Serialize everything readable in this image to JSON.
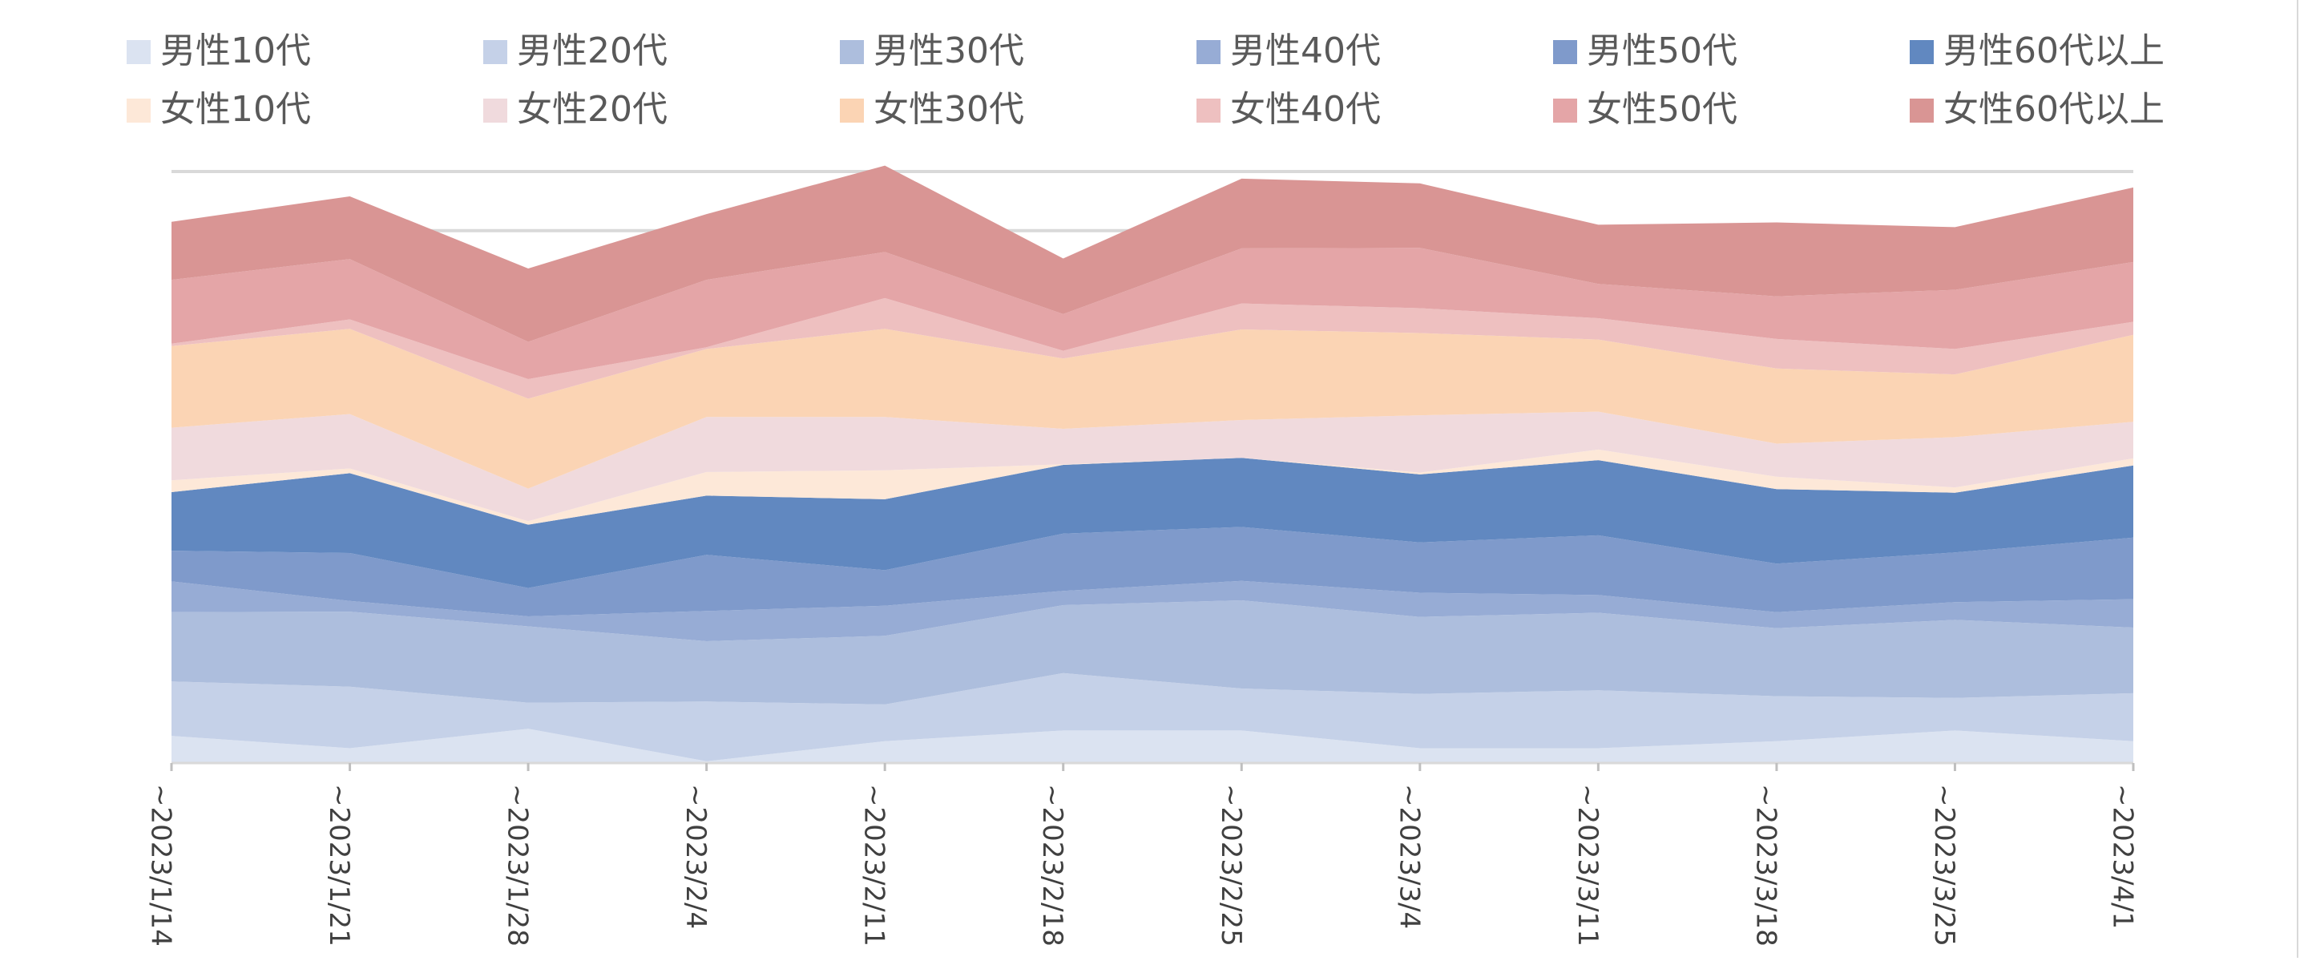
{
  "chart_data": {
    "type": "area",
    "stacked": true,
    "title": "",
    "xlabel": "",
    "ylabel": "",
    "ylim": [
      0,
      100
    ],
    "grid": true,
    "gridlines_y": [
      90,
      100
    ],
    "legend_position": "top",
    "categories": [
      "~2023/1/14",
      "~2023/1/21",
      "~2023/1/28",
      "~2023/2/4",
      "~2023/2/11",
      "~2023/2/18",
      "~2023/2/25",
      "~2023/3/4",
      "~2023/3/11",
      "~2023/3/18",
      "~2023/3/25",
      "~2023/4/1"
    ],
    "series": [
      {
        "name": "男性10代",
        "color": "#dbe3f1",
        "values": [
          4.6,
          2.5,
          5.8,
          0.3,
          3.7,
          5.5,
          5.5,
          2.5,
          2.5,
          3.7,
          5.5,
          3.7
        ]
      },
      {
        "name": "男性20代",
        "color": "#c5d1e8",
        "values": [
          9.2,
          10.4,
          4.4,
          10.1,
          6.2,
          9.7,
          7.1,
          9.2,
          9.8,
          7.6,
          5.5,
          8.1
        ]
      },
      {
        "name": "男性30代",
        "color": "#adbedd",
        "values": [
          11.7,
          12.7,
          12.9,
          10.2,
          11.6,
          11.5,
          14.9,
          13.0,
          13.1,
          11.5,
          13.2,
          11.1
        ]
      },
      {
        "name": "男性40代",
        "color": "#97acd5",
        "values": [
          5.2,
          1.8,
          1.7,
          5.1,
          5.1,
          2.4,
          3.3,
          4.1,
          3.0,
          2.7,
          3.0,
          4.8
        ]
      },
      {
        "name": "男性50代",
        "color": "#7f9acb",
        "values": [
          5.2,
          8.1,
          4.8,
          9.5,
          6.0,
          9.7,
          9.1,
          8.5,
          10.1,
          8.2,
          8.4,
          10.4
        ]
      },
      {
        "name": "男性60代以上",
        "color": "#6188c0",
        "values": [
          9.9,
          13.5,
          10.7,
          10.0,
          12.0,
          11.6,
          11.7,
          11.5,
          12.7,
          12.6,
          10.1,
          12.2
        ]
      },
      {
        "name": "女性10代",
        "color": "#fde8d8",
        "values": [
          2.0,
          0.8,
          0.6,
          4.0,
          4.9,
          0.1,
          0.0,
          0.3,
          1.8,
          2.1,
          0.9,
          1.2
        ]
      },
      {
        "name": "女性20代",
        "color": "#f0dadd",
        "values": [
          8.9,
          9.2,
          5.5,
          9.3,
          9.0,
          6.0,
          6.4,
          9.7,
          6.4,
          5.6,
          8.5,
          6.2
        ]
      },
      {
        "name": "女性30代",
        "color": "#fbd4b4",
        "values": [
          13.8,
          14.4,
          15.2,
          11.5,
          14.9,
          11.9,
          15.3,
          13.9,
          12.2,
          12.7,
          10.6,
          14.7
        ]
      },
      {
        "name": "女性40代",
        "color": "#eec0c0",
        "values": [
          0.4,
          1.6,
          3.3,
          0.3,
          5.2,
          1.3,
          4.4,
          4.2,
          3.6,
          5.0,
          4.3,
          2.2
        ]
      },
      {
        "name": "女性50代",
        "color": "#e4a5a7",
        "values": [
          10.8,
          10.2,
          6.3,
          11.4,
          7.8,
          6.2,
          9.3,
          10.2,
          5.8,
          7.2,
          10.0,
          10.1
        ]
      },
      {
        "name": "女性60代以上",
        "color": "#d99594",
        "values": [
          9.8,
          10.6,
          12.4,
          11.1,
          14.6,
          9.4,
          11.8,
          10.9,
          10.0,
          12.5,
          10.6,
          12.6
        ]
      }
    ]
  }
}
